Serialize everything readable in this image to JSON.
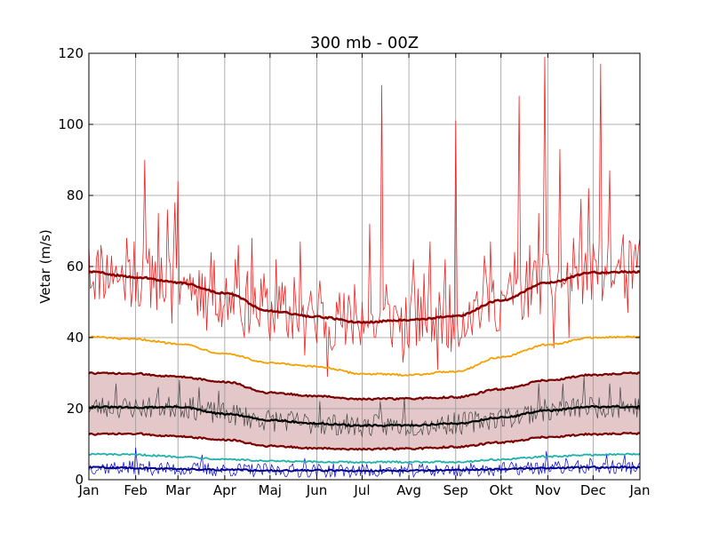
{
  "chart_data": {
    "type": "line",
    "title": "300 mb - 00Z",
    "xlabel": "",
    "ylabel": "Vetar (m/s)",
    "x_range_days": [
      0,
      365
    ],
    "ylim": [
      0,
      120
    ],
    "yticks": [
      0,
      20,
      40,
      60,
      80,
      100,
      120
    ],
    "xtick_labels": [
      "Jan",
      "Feb",
      "Mar",
      "Apr",
      "Maj",
      "Jun",
      "Jul",
      "Avg",
      "Sep",
      "Okt",
      "Nov",
      "Dec",
      "Jan"
    ],
    "xtick_days": [
      0,
      31,
      59,
      90,
      120,
      151,
      181,
      212,
      243,
      273,
      304,
      334,
      365
    ],
    "grid": true,
    "shaded_band": {
      "between": [
        "upper-band",
        "lower-band"
      ],
      "color": "#e4c7c9"
    },
    "smooth_series": [
      {
        "id": "max-mean",
        "color": "#8b0000",
        "width": 2.5,
        "x": [
          0,
          31,
          59,
          90,
          120,
          151,
          181,
          212,
          243,
          273,
          304,
          334,
          365
        ],
        "y": [
          58.5,
          57.0,
          55.5,
          52.5,
          47.5,
          45.8,
          44.3,
          45.0,
          46.0,
          50.5,
          55.5,
          58.3,
          58.5
        ]
      },
      {
        "id": "upper-threshold",
        "color": "#f5a000",
        "width": 1.8,
        "x": [
          0,
          31,
          59,
          90,
          120,
          151,
          181,
          212,
          243,
          273,
          304,
          334,
          365
        ],
        "y": [
          40.2,
          39.5,
          38.3,
          35.5,
          32.8,
          31.8,
          29.8,
          29.5,
          30.5,
          34.5,
          38.0,
          40.0,
          40.2
        ]
      },
      {
        "id": "upper-band",
        "color": "#7a0000",
        "width": 2.2,
        "x": [
          0,
          31,
          59,
          90,
          120,
          151,
          181,
          212,
          243,
          273,
          304,
          334,
          365
        ],
        "y": [
          30.0,
          29.8,
          29.0,
          27.5,
          24.5,
          23.5,
          22.7,
          22.8,
          23.2,
          25.5,
          28.0,
          29.5,
          30.0
        ]
      },
      {
        "id": "mean",
        "color": "#000000",
        "width": 2.2,
        "x": [
          0,
          31,
          59,
          90,
          120,
          151,
          181,
          212,
          243,
          273,
          304,
          334,
          365
        ],
        "y": [
          20.5,
          20.3,
          20.5,
          18.5,
          16.8,
          15.8,
          15.2,
          15.3,
          15.8,
          17.5,
          19.5,
          20.5,
          20.5
        ]
      },
      {
        "id": "lower-band",
        "color": "#7a0000",
        "width": 2.2,
        "x": [
          0,
          31,
          59,
          90,
          120,
          151,
          181,
          212,
          243,
          273,
          304,
          334,
          365
        ],
        "y": [
          12.8,
          12.9,
          12.2,
          11.2,
          9.5,
          8.8,
          8.6,
          8.7,
          9.2,
          10.5,
          12.0,
          12.8,
          13.0
        ]
      },
      {
        "id": "lower-threshold",
        "color": "#20b2aa",
        "width": 1.8,
        "x": [
          0,
          31,
          59,
          90,
          120,
          151,
          181,
          212,
          243,
          273,
          304,
          334,
          365
        ],
        "y": [
          7.2,
          7.0,
          6.5,
          5.8,
          5.2,
          5.0,
          4.9,
          5.0,
          5.0,
          5.7,
          6.5,
          7.0,
          7.2
        ]
      },
      {
        "id": "min-mean",
        "color": "#00008b",
        "width": 2.0,
        "x": [
          0,
          31,
          59,
          90,
          120,
          151,
          181,
          212,
          243,
          273,
          304,
          334,
          365
        ],
        "y": [
          3.5,
          3.3,
          3.0,
          2.8,
          2.6,
          2.6,
          2.5,
          2.6,
          2.7,
          3.0,
          3.3,
          3.5,
          3.5
        ]
      }
    ],
    "noisy_series": [
      {
        "id": "daily-max",
        "color": "#ee2222",
        "width": 0.8,
        "base": "max-mean",
        "amplitude": 9.0,
        "seed": 11,
        "spikes": [
          [
            0,
            66
          ],
          [
            8,
            66
          ],
          [
            15,
            63
          ],
          [
            20,
            56
          ],
          [
            25,
            68
          ],
          [
            30,
            67
          ],
          [
            34,
            49
          ],
          [
            37,
            90
          ],
          [
            42,
            63
          ],
          [
            46,
            75
          ],
          [
            49,
            52
          ],
          [
            52,
            76
          ],
          [
            55,
            44
          ],
          [
            57,
            78
          ],
          [
            59,
            84
          ],
          [
            61,
            55
          ],
          [
            64,
            55
          ],
          [
            67,
            58
          ],
          [
            70,
            52
          ],
          [
            75,
            58
          ],
          [
            78,
            42
          ],
          [
            81,
            64
          ],
          [
            88,
            43
          ],
          [
            92,
            45
          ],
          [
            97,
            62
          ],
          [
            99,
            66
          ],
          [
            103,
            40
          ],
          [
            108,
            68
          ],
          [
            113,
            43
          ],
          [
            116,
            58
          ],
          [
            119,
            43
          ],
          [
            124,
            62
          ],
          [
            132,
            40
          ],
          [
            136,
            57
          ],
          [
            140,
            67
          ],
          [
            143,
            35
          ],
          [
            146,
            50
          ],
          [
            150,
            42
          ],
          [
            153,
            56
          ],
          [
            158,
            29
          ],
          [
            164,
            50
          ],
          [
            170,
            38
          ],
          [
            176,
            55
          ],
          [
            181,
            50
          ],
          [
            186,
            72
          ],
          [
            190,
            40
          ],
          [
            194,
            111
          ],
          [
            197,
            55
          ],
          [
            203,
            49
          ],
          [
            208,
            33
          ],
          [
            212,
            37
          ],
          [
            215,
            62
          ],
          [
            219,
            39
          ],
          [
            222,
            58
          ],
          [
            226,
            67
          ],
          [
            231,
            31
          ],
          [
            236,
            62
          ],
          [
            240,
            36
          ],
          [
            243,
            101
          ],
          [
            247,
            40
          ],
          [
            252,
            50
          ],
          [
            257,
            53
          ],
          [
            262,
            63
          ],
          [
            266,
            67
          ],
          [
            271,
            42
          ],
          [
            275,
            52
          ],
          [
            282,
            64
          ],
          [
            285,
            108
          ],
          [
            287,
            45
          ],
          [
            292,
            66
          ],
          [
            298,
            75
          ],
          [
            302,
            119
          ],
          [
            305,
            60
          ],
          [
            308,
            37
          ],
          [
            312,
            93
          ],
          [
            315,
            55
          ],
          [
            318,
            40
          ],
          [
            321,
            68
          ],
          [
            326,
            79
          ],
          [
            331,
            82
          ],
          [
            335,
            62
          ],
          [
            337,
            55
          ],
          [
            339,
            117
          ],
          [
            342,
            60
          ],
          [
            345,
            87
          ],
          [
            348,
            55
          ],
          [
            351,
            62
          ],
          [
            354,
            69
          ],
          [
            357,
            47
          ],
          [
            361,
            63
          ],
          [
            365,
            68
          ]
        ]
      },
      {
        "id": "daily-mean",
        "color": "#444444",
        "width": 0.7,
        "base": "mean",
        "amplitude": 3.2,
        "seed": 23,
        "spikes": [
          [
            18,
            27
          ],
          [
            46,
            26
          ],
          [
            60,
            28
          ],
          [
            73,
            26
          ],
          [
            86,
            25
          ],
          [
            153,
            22
          ],
          [
            193,
            22
          ],
          [
            209,
            23
          ],
          [
            298,
            27
          ],
          [
            314,
            27
          ],
          [
            328,
            29
          ],
          [
            345,
            27
          ],
          [
            352,
            26
          ]
        ]
      },
      {
        "id": "daily-min",
        "color": "#0000dd",
        "width": 0.7,
        "base": "min-mean",
        "amplitude": 2.0,
        "seed": 37,
        "spikes": [
          [
            31,
            9
          ],
          [
            75,
            7
          ],
          [
            143,
            6
          ],
          [
            303,
            8
          ],
          [
            316,
            6
          ],
          [
            332,
            6
          ],
          [
            343,
            7
          ],
          [
            355,
            7
          ]
        ]
      }
    ]
  }
}
